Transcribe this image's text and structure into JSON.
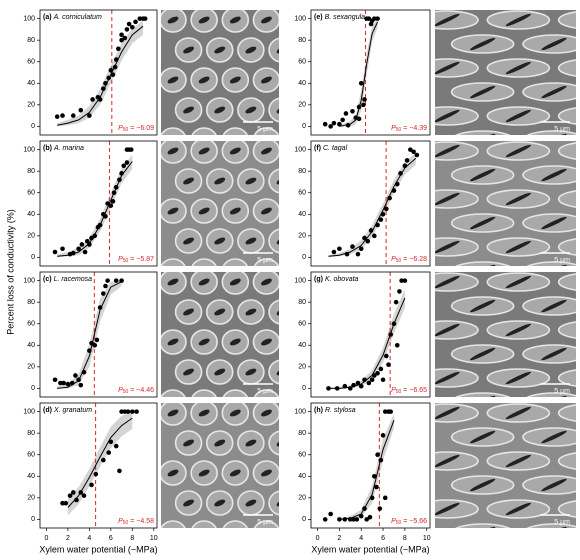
{
  "x_axis": {
    "label": "Xylem water potential (−MPa)",
    "lim": [
      -0.6,
      10.3
    ],
    "ticks": [
      0,
      2,
      4,
      6,
      8,
      10
    ]
  },
  "y_axis": {
    "label": "Percent loss of conductivity (%)",
    "lim": [
      -8,
      108
    ],
    "ticks": [
      0,
      20,
      40,
      60,
      80,
      100
    ]
  },
  "chart_data": [
    {
      "type": "scatter",
      "panel": "(a)",
      "species": "A. corniculatum",
      "x": [
        1,
        1.5,
        2.5,
        3.2,
        4,
        4.3,
        4.8,
        5,
        5.3,
        5.5,
        5.8,
        6,
        6.2,
        6.4,
        6.5,
        6.7,
        7,
        7,
        7.3,
        7.5,
        7.7,
        8,
        8.3,
        8.7,
        9,
        9.2
      ],
      "values": [
        9,
        10,
        10,
        15,
        10,
        25,
        27,
        25,
        35,
        40,
        45,
        52,
        48,
        55,
        62,
        72,
        80,
        85,
        82,
        90,
        95,
        92,
        97,
        100,
        100,
        100
      ],
      "fit": {
        "x": [
          1,
          2,
          3,
          4,
          5,
          6,
          7,
          8,
          9
        ],
        "values": [
          1,
          3,
          6,
          13,
          27,
          48,
          69,
          85,
          93
        ],
        "lower": [
          0,
          1,
          3,
          8,
          20,
          40,
          61,
          77,
          85
        ],
        "upper": [
          3,
          6,
          10,
          19,
          35,
          56,
          77,
          91,
          98
        ]
      },
      "p50": 6.09,
      "p50_symbol": "P",
      "p50_subscript": "50",
      "p50_label": " = −6.09"
    },
    {
      "type": "scatter",
      "panel": "(b)",
      "species": "A. marina",
      "x": [
        0.8,
        1.5,
        2.2,
        2.5,
        3,
        3.3,
        3.6,
        3.8,
        4,
        4.2,
        4.5,
        4.8,
        5,
        5.3,
        5.5,
        5.7,
        6,
        6.2,
        6.3,
        6.5,
        6.8,
        7,
        7.2,
        7.5,
        7.5,
        7.7,
        7.9
      ],
      "values": [
        5,
        8,
        3,
        4,
        8,
        12,
        5,
        15,
        12,
        18,
        20,
        28,
        30,
        40,
        38,
        50,
        48,
        52,
        60,
        65,
        72,
        78,
        85,
        88,
        100,
        100,
        100
      ],
      "fit": {
        "x": [
          1,
          2,
          3,
          4,
          5,
          6,
          7,
          8
        ],
        "values": [
          1,
          2,
          5,
          13,
          30,
          53,
          76,
          89
        ],
        "lower": [
          0,
          1,
          2,
          9,
          24,
          46,
          69,
          82
        ],
        "upper": [
          3,
          5,
          9,
          18,
          36,
          60,
          83,
          95
        ]
      },
      "p50": 5.87,
      "p50_symbol": "P",
      "p50_subscript": "50",
      "p50_label": " = −5.87"
    },
    {
      "type": "scatter",
      "panel": "(c)",
      "species": "L. racemosa",
      "x": [
        0.8,
        1.3,
        1.6,
        2,
        2.4,
        2.7,
        3,
        3.2,
        3.5,
        4,
        4.2,
        4.5,
        4.7,
        5,
        5.3,
        5.5,
        5.7,
        6.5,
        7
      ],
      "values": [
        8,
        5,
        5,
        4,
        5,
        12,
        8,
        3,
        15,
        35,
        42,
        40,
        45,
        75,
        88,
        95,
        100,
        100,
        100
      ],
      "fit": {
        "x": [
          1,
          2,
          3,
          4,
          5,
          6,
          7
        ],
        "values": [
          0,
          1,
          7,
          30,
          73,
          94,
          99
        ],
        "lower": [
          0,
          0,
          3,
          20,
          62,
          87,
          95
        ],
        "upper": [
          2,
          4,
          13,
          41,
          83,
          99,
          100
        ]
      },
      "p50": 4.46,
      "p50_symbol": "P",
      "p50_subscript": "50",
      "p50_label": " = −4.46"
    },
    {
      "type": "scatter",
      "panel": "(d)",
      "species": "X. granatum",
      "x": [
        1.5,
        1.8,
        2.2,
        2.5,
        2.8,
        3.2,
        3.5,
        4.2,
        4.6,
        5.3,
        5.8,
        6,
        6.5,
        6.8,
        7,
        7.3,
        7.6,
        8,
        8.4
      ],
      "values": [
        15,
        15,
        22,
        25,
        18,
        25,
        22,
        32,
        42,
        55,
        62,
        72,
        68,
        45,
        100,
        100,
        100,
        100,
        100
      ],
      "fit": {
        "x": [
          2,
          3,
          4,
          5,
          6,
          7,
          8
        ],
        "values": [
          11,
          22,
          39,
          58,
          76,
          87,
          94
        ],
        "lower": [
          4,
          14,
          31,
          49,
          66,
          77,
          84
        ],
        "upper": [
          19,
          30,
          47,
          67,
          86,
          96,
          100
        ]
      },
      "p50": 4.58,
      "p50_symbol": "P",
      "p50_subscript": "50",
      "p50_label": " = −4.58"
    },
    {
      "type": "scatter",
      "panel": "(e)",
      "species": "B. sexangula",
      "x": [
        0.7,
        1.2,
        1.5,
        2,
        2.3,
        2.6,
        2.8,
        3.2,
        3.5,
        3.8,
        3.8,
        4,
        4.2,
        4.3,
        4.5,
        4.7,
        4.9,
        5,
        5.2,
        5.5
      ],
      "values": [
        2,
        0,
        3,
        2,
        6,
        12,
        1,
        14,
        8,
        18,
        7,
        40,
        20,
        25,
        100,
        100,
        95,
        98,
        100,
        100
      ],
      "fit": {
        "x": [
          2,
          3,
          3.5,
          4,
          4.5,
          5,
          5.5
        ],
        "values": [
          0,
          2,
          6,
          24,
          58,
          86,
          97
        ],
        "lower": [
          0,
          0,
          2,
          15,
          48,
          78,
          92
        ],
        "upper": [
          1,
          5,
          11,
          33,
          68,
          93,
          100
        ]
      },
      "p50": 4.39,
      "p50_symbol": "P",
      "p50_subscript": "50",
      "p50_label": " = −4.39"
    },
    {
      "type": "scatter",
      "panel": "(f)",
      "species": "C. tagal",
      "x": [
        1.5,
        2,
        2.7,
        3.2,
        3.7,
        4,
        4.3,
        4.6,
        4.9,
        5.2,
        5.5,
        5.8,
        6,
        6.3,
        6.6,
        7,
        7.3,
        7.6,
        8,
        8.2,
        8.5,
        8.8,
        9.1
      ],
      "values": [
        5,
        8,
        3,
        10,
        3,
        8,
        18,
        15,
        25,
        20,
        30,
        35,
        40,
        45,
        55,
        62,
        68,
        78,
        85,
        90,
        100,
        98,
        95
      ],
      "fit": {
        "x": [
          1,
          2,
          3,
          4,
          5,
          6,
          7,
          8,
          9
        ],
        "values": [
          1,
          2,
          5,
          11,
          24,
          44,
          66,
          83,
          92
        ],
        "lower": [
          0,
          1,
          3,
          7,
          19,
          38,
          60,
          77,
          86
        ],
        "upper": [
          2,
          4,
          8,
          16,
          30,
          50,
          72,
          89,
          97
        ]
      },
      "p50": 6.28,
      "p50_symbol": "P",
      "p50_subscript": "50",
      "p50_label": " = −6.28"
    },
    {
      "type": "scatter",
      "panel": "(g)",
      "species": "K. obovata",
      "x": [
        1,
        1.8,
        2.5,
        3,
        3.3,
        3.7,
        4,
        4.3,
        4.7,
        5,
        5.2,
        5.5,
        5.8,
        6,
        6.3,
        6.5,
        6.7,
        7,
        7.2,
        7.3,
        7.5,
        7.7,
        8
      ],
      "values": [
        0,
        0,
        2,
        0,
        3,
        5,
        2,
        8,
        5,
        8,
        12,
        14,
        18,
        8,
        30,
        22,
        50,
        60,
        80,
        40,
        90,
        100,
        100
      ],
      "fit": {
        "x": [
          1,
          2,
          3,
          4,
          5,
          6,
          7,
          8
        ],
        "values": [
          0,
          0,
          1,
          4,
          12,
          31,
          60,
          84
        ],
        "lower": [
          0,
          0,
          0,
          2,
          8,
          24,
          51,
          75
        ],
        "upper": [
          1,
          1,
          3,
          7,
          17,
          38,
          69,
          92
        ]
      },
      "p50": 6.65,
      "p50_symbol": "P",
      "p50_subscript": "50",
      "p50_label": " = −6.65"
    },
    {
      "type": "scatter",
      "panel": "(h)",
      "species": "R. stylosa",
      "x": [
        0.7,
        1.2,
        2,
        2.5,
        3,
        3.3,
        3.6,
        4,
        4.3,
        4.5,
        4.8,
        5,
        5.2,
        5.4,
        5.5,
        5.7,
        5.8,
        6,
        6.2,
        6.2,
        6.5,
        6.7
      ],
      "values": [
        0,
        5,
        0,
        0,
        0,
        0,
        0,
        3,
        10,
        0,
        2,
        20,
        40,
        30,
        60,
        10,
        55,
        78,
        20,
        100,
        100,
        100
      ],
      "fit": {
        "x": [
          2,
          3,
          4,
          5,
          6,
          7
        ],
        "values": [
          0,
          1,
          5,
          23,
          65,
          92
        ],
        "lower": [
          0,
          0,
          2,
          15,
          55,
          85
        ],
        "upper": [
          1,
          3,
          9,
          31,
          75,
          98
        ]
      },
      "p50": 5.66,
      "p50_symbol": "P",
      "p50_subscript": "50",
      "p50_label": " = −5.66"
    }
  ],
  "images": [
    {
      "scale_label": "5 µm"
    },
    {
      "scale_label": "5 µm"
    },
    {
      "scale_label": "5 µm"
    },
    {
      "scale_label": "5 µm"
    },
    {
      "scale_label": "5 µm"
    },
    {
      "scale_label": "5 µm"
    },
    {
      "scale_label": "5 µm"
    },
    {
      "scale_label": "5 µm"
    }
  ]
}
